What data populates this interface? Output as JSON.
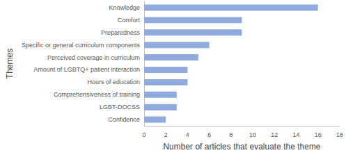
{
  "chart_data": {
    "type": "bar",
    "orientation": "horizontal",
    "x_label": "Number of articles that evaluate the theme",
    "y_label": "Themes",
    "categories": [
      "Knowledge",
      "Comfort",
      "Preparedness",
      "Specific or general curriculum components",
      "Perceived coverage in curriculum",
      "Amount of LGBTQ+ patient interaction",
      "Hours of education",
      "Comprehensiveness of training",
      "LGBT-DOCSS",
      "Confidence"
    ],
    "values": [
      16,
      9,
      9,
      6,
      5,
      4,
      4,
      3,
      3,
      2
    ],
    "color": "#8faadc",
    "xlim": [
      0,
      18
    ],
    "xticks": [
      0,
      2,
      4,
      6,
      8,
      10,
      12,
      14,
      16,
      18
    ],
    "grid": false
  }
}
